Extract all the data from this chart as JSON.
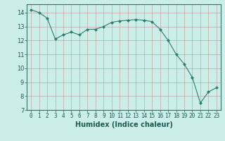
{
  "x": [
    0,
    1,
    2,
    3,
    4,
    5,
    6,
    7,
    8,
    9,
    10,
    11,
    12,
    13,
    14,
    15,
    16,
    17,
    18,
    19,
    20,
    21,
    22,
    23
  ],
  "y": [
    14.2,
    14.0,
    13.6,
    12.1,
    12.4,
    12.6,
    12.4,
    12.8,
    12.8,
    13.0,
    13.3,
    13.4,
    13.45,
    13.5,
    13.45,
    13.35,
    12.8,
    12.0,
    11.0,
    10.3,
    9.35,
    7.5,
    8.3,
    8.6
  ],
  "line_color": "#2e7d6e",
  "marker": "D",
  "marker_size": 2.5,
  "bg_color": "#cceee8",
  "grid_color": "#c0a0a0",
  "xlabel": "Humidex (Indice chaleur)",
  "xlim": [
    -0.5,
    23.5
  ],
  "ylim": [
    7,
    14.6
  ],
  "yticks": [
    7,
    8,
    9,
    10,
    11,
    12,
    13,
    14
  ],
  "xticks": [
    0,
    1,
    2,
    3,
    4,
    5,
    6,
    7,
    8,
    9,
    10,
    11,
    12,
    13,
    14,
    15,
    16,
    17,
    18,
    19,
    20,
    21,
    22,
    23
  ],
  "tick_fontsize": 5.5,
  "xlabel_fontsize": 7
}
